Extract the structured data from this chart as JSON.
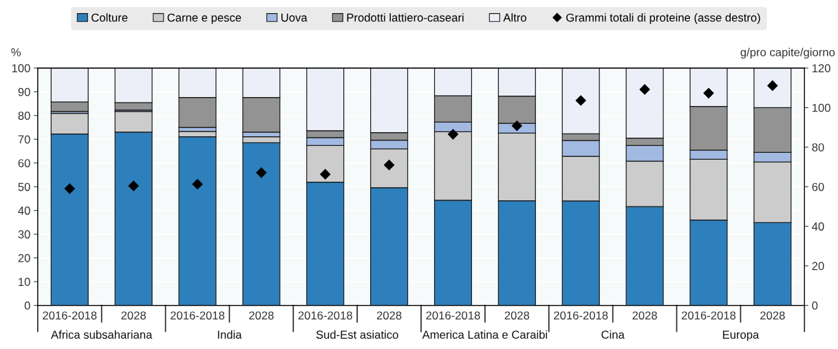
{
  "chart_data": {
    "type": "bar",
    "stacked": true,
    "ylabel": "%",
    "y2label": "g/pro capite/giorno",
    "categories": [
      "2016-2018",
      "2028",
      "2016-2018",
      "2028",
      "2016-2018",
      "2028",
      "2016-2018",
      "2028",
      "2016-2018",
      "2028",
      "2016-2018",
      "2028"
    ],
    "annotations": [
      "Africa subsahariana",
      "India",
      "Sud-Est asiatico",
      "America Latina e Caraibi",
      "Cina",
      "Europa"
    ],
    "series": [
      {
        "name": "Colture",
        "color": "#2e80bd",
        "values": [
          72.2,
          73.0,
          71.1,
          68.5,
          51.9,
          49.6,
          44.3,
          44.1,
          44.0,
          41.6,
          36.0,
          34.9
        ]
      },
      {
        "name": "Carne e pesce",
        "color": "#cccccc",
        "values": [
          8.7,
          8.7,
          2.2,
          2.6,
          15.5,
          16.3,
          28.9,
          28.5,
          18.8,
          19.2,
          25.6,
          25.5
        ]
      },
      {
        "name": "Uova",
        "color": "#a2b9e2",
        "values": [
          0.8,
          0.6,
          1.7,
          1.9,
          3.3,
          3.7,
          4.0,
          4.1,
          6.7,
          6.6,
          3.8,
          4.1
        ]
      },
      {
        "name": "Prodotti lattiero-caseari",
        "color": "#939393",
        "values": [
          4.0,
          3.1,
          12.6,
          14.6,
          2.9,
          3.2,
          11.1,
          11.5,
          2.8,
          3.1,
          18.4,
          18.8
        ]
      },
      {
        "name": "Altro",
        "color": "#eceff8",
        "values": [
          14.3,
          14.6,
          12.4,
          12.4,
          26.4,
          27.2,
          11.7,
          11.8,
          27.7,
          29.5,
          16.2,
          16.7
        ]
      },
      {
        "name": "Grammi totali di proteine (asse destro)",
        "type": "scatter",
        "axis": "y2",
        "marker": "diamond",
        "color": "#000000",
        "values": [
          59,
          60.4,
          61.3,
          67.1,
          66.3,
          71.0,
          86.5,
          90.8,
          103.6,
          109.2,
          107.3,
          111.1
        ]
      }
    ],
    "ylim": [
      0,
      100
    ],
    "yticks": [
      0,
      10,
      20,
      30,
      40,
      50,
      60,
      70,
      80,
      90,
      100
    ],
    "y2lim": [
      0,
      120
    ],
    "y2ticks": [
      0,
      20,
      40,
      60,
      80,
      100,
      120
    ],
    "grid": true,
    "legend": "top"
  }
}
